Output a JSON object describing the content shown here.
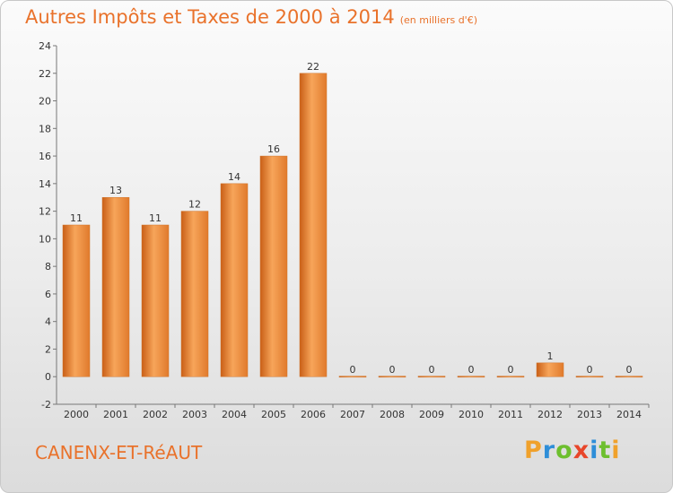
{
  "header": {
    "title": "Autres Impôts et Taxes de 2000 à 2014",
    "subtitle": "(en milliers d'€)"
  },
  "footer": {
    "place": "CANENX-ET-RéAUT",
    "logo": "Proxiti"
  },
  "colors": {
    "accent": "#e9722b",
    "bar": "#f0923c"
  },
  "chart_data": {
    "type": "bar",
    "title": "Autres Impôts et Taxes de 2000 à 2014",
    "subtitle": "(en milliers d'€)",
    "xlabel": "",
    "ylabel": "",
    "categories": [
      "2000",
      "2001",
      "2002",
      "2003",
      "2004",
      "2005",
      "2006",
      "2007",
      "2008",
      "2009",
      "2010",
      "2011",
      "2012",
      "2013",
      "2014"
    ],
    "values": [
      11,
      13,
      11,
      12,
      14,
      16,
      22,
      0,
      0,
      0,
      0,
      0,
      1,
      0,
      0
    ],
    "ylim": [
      -2,
      24
    ],
    "yticks": [
      -2,
      0,
      2,
      4,
      6,
      8,
      10,
      12,
      14,
      16,
      18,
      20,
      22,
      24
    ],
    "grid": false,
    "legend": "none"
  }
}
